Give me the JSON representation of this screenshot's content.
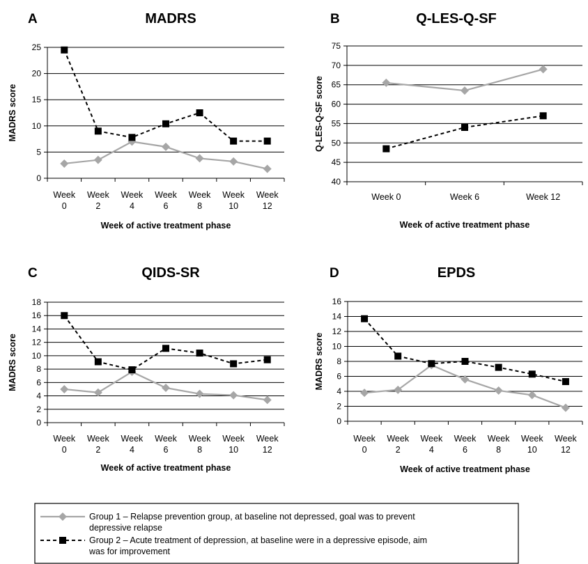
{
  "colors": {
    "group1": "#a6a6a6",
    "group2": "#000000",
    "grid": "#000000"
  },
  "legend": {
    "entries": [
      {
        "line1": "Group 1 – Relapse prevention group, at baseline not depressed, goal was to prevent",
        "line2": "depressive relapse",
        "marker": "diamond",
        "line_style": "solid",
        "color": "#a6a6a6"
      },
      {
        "line1": "Group 2 – Acute treatment of depression, at baseline were in a depressive episode, aim",
        "line2": "was for improvement",
        "marker": "square",
        "line_style": "dashed",
        "color": "#000000"
      }
    ]
  },
  "chart_data": [
    {
      "letter": "A",
      "title": "MADRS",
      "type": "line",
      "ylabel": "MADRS score",
      "xlabel": "Week of active treatment phase",
      "ylim": [
        0,
        25
      ],
      "ystep": 5,
      "grid": true,
      "categories": [
        "Week 0",
        "Week 2",
        "Week 4",
        "Week 6",
        "Week 8",
        "Week 10",
        "Week 12"
      ],
      "tick_line1": [
        "Week",
        "Week",
        "Week",
        "Week",
        "Week",
        "Week",
        "Week"
      ],
      "tick_line2": [
        "0",
        "2",
        "4",
        "6",
        "8",
        "10",
        "12"
      ],
      "series": [
        {
          "values": [
            2.8,
            3.5,
            7.0,
            6.0,
            3.8,
            3.2,
            1.8
          ]
        },
        {
          "values": [
            24.5,
            9.0,
            7.8,
            10.4,
            12.5,
            7.1,
            7.1
          ]
        }
      ]
    },
    {
      "letter": "B",
      "title": "Q-LES-Q-SF",
      "type": "line",
      "ylabel": "Q-LES-Q-SF score",
      "xlabel": "Week of active treatment phase",
      "ylim": [
        40,
        75
      ],
      "ystep": 5,
      "grid": true,
      "categories": [
        "Week 0",
        "Week 6",
        "Week 12"
      ],
      "tick_line1": [
        "Week 0",
        "Week 6",
        "Week 12"
      ],
      "tick_line2": [
        "",
        "",
        ""
      ],
      "series": [
        {
          "values": [
            65.5,
            63.5,
            69.0
          ]
        },
        {
          "values": [
            48.5,
            54.0,
            57.0
          ]
        }
      ]
    },
    {
      "letter": "C",
      "title": "QIDS-SR",
      "type": "line",
      "ylabel": "MADRS score",
      "xlabel": "Week of active treatment phase",
      "ylim": [
        0,
        18
      ],
      "ystep": 2,
      "grid": true,
      "categories": [
        "Week 0",
        "Week 2",
        "Week 4",
        "Week 6",
        "Week 8",
        "Week 10",
        "Week 12"
      ],
      "tick_line1": [
        "Week",
        "Week",
        "Week",
        "Week",
        "Week",
        "Week",
        "Week"
      ],
      "tick_line2": [
        "0",
        "2",
        "4",
        "6",
        "8",
        "10",
        "12"
      ],
      "series": [
        {
          "values": [
            5.0,
            4.5,
            7.6,
            5.2,
            4.3,
            4.1,
            3.4
          ]
        },
        {
          "values": [
            16.0,
            9.1,
            7.9,
            11.1,
            10.4,
            8.8,
            9.4
          ]
        }
      ]
    },
    {
      "letter": "D",
      "title": "EPDS",
      "type": "line",
      "ylabel": "MADRS score",
      "xlabel": "Week of active treatment phase",
      "ylim": [
        0,
        16
      ],
      "ystep": 2,
      "grid": true,
      "categories": [
        "Week 0",
        "Week 2",
        "Week 4",
        "Week 6",
        "Week 8",
        "Week 10",
        "Week 12"
      ],
      "tick_line1": [
        "Week",
        "Week",
        "Week",
        "Week",
        "Week",
        "Week",
        "Week"
      ],
      "tick_line2": [
        "0",
        "2",
        "4",
        "6",
        "8",
        "10",
        "12"
      ],
      "series": [
        {
          "values": [
            3.8,
            4.2,
            7.5,
            5.6,
            4.1,
            3.5,
            1.8
          ]
        },
        {
          "values": [
            13.7,
            8.7,
            7.7,
            8.0,
            7.2,
            6.3,
            5.3
          ]
        }
      ]
    }
  ]
}
